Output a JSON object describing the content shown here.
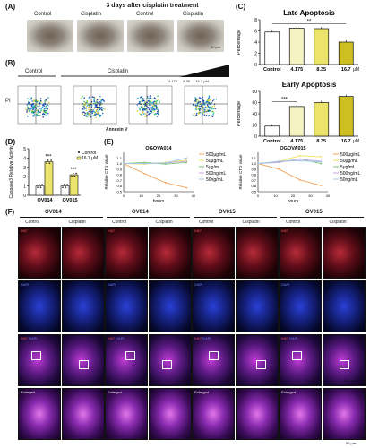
{
  "panel_labels": {
    "a": "(A)",
    "b": "(B)",
    "c": "(C)",
    "d": "(D)",
    "e": "(E)",
    "f": "(F)"
  },
  "panel_a": {
    "header": "3 days after cisplatin treatment",
    "labels": [
      "Control",
      "Cisplatin",
      "Control",
      "Cisplatin"
    ],
    "scale": "50 μm"
  },
  "panel_b": {
    "control": "Control",
    "cisplatin": "Cisplatin",
    "doses": "4.175 → 8.35 → 16.7 μM",
    "ylabel": "PI",
    "xlabel": "Annexin V"
  },
  "chart_data": [
    {
      "type": "bar",
      "title": "Late Apoptosis",
      "categories": [
        "Control",
        "4.175",
        "8.35",
        "16.7"
      ],
      "values": [
        5.8,
        6.5,
        6.4,
        4.0
      ],
      "ylabel": "Percentage",
      "xunit": "μM",
      "ylim": [
        0,
        8
      ],
      "yticks": [
        0,
        2,
        4,
        6,
        8
      ],
      "sig": "**",
      "colors": [
        "#ffffff",
        "#f6f3c2",
        "#ece46a",
        "#cdbf1f"
      ]
    },
    {
      "type": "bar",
      "title": "Early Apoptosis",
      "categories": [
        "Control",
        "4.175",
        "8.35",
        "16.7"
      ],
      "values": [
        18,
        53,
        60,
        71
      ],
      "ylabel": "Percentage",
      "xunit": "μM",
      "ylim": [
        0,
        80
      ],
      "yticks": [
        0,
        20,
        40,
        60,
        80
      ],
      "sig": "***",
      "colors": [
        "#ffffff",
        "#f6f3c2",
        "#ece46a",
        "#cdbf1f"
      ]
    },
    {
      "type": "bar",
      "ylabel": "Caspase3 Relative Activity",
      "categories": [
        "OV014",
        "OV015"
      ],
      "series": [
        {
          "name": "Control",
          "values": [
            1.0,
            1.0
          ]
        },
        {
          "name": "16.7 μM",
          "values": [
            3.6,
            2.2
          ]
        }
      ],
      "ylim": [
        0,
        5
      ],
      "yticks": [
        0,
        1,
        2,
        3,
        4,
        5
      ],
      "sig": [
        "***",
        "***"
      ]
    },
    {
      "type": "line",
      "title": "OGOVA014",
      "ylabel": "Relative CTG value",
      "xlabel": "hours",
      "x": [
        0,
        12,
        24,
        36
      ],
      "ylim": [
        0.5,
        1.2
      ],
      "yticks": [
        0.5,
        0.6,
        0.7,
        0.8,
        0.9,
        1.0,
        1.1
      ],
      "xticks": [
        0,
        10,
        20,
        30,
        40
      ],
      "series": [
        {
          "name": "500μg/mL",
          "color": "#f2a45a",
          "values": [
            1.0,
            0.82,
            0.66,
            0.57
          ]
        },
        {
          "name": "50μg/mL",
          "color": "#f2e05a",
          "values": [
            1.0,
            0.99,
            1.02,
            1.06
          ]
        },
        {
          "name": "5μg/mL",
          "color": "#7cc77a",
          "values": [
            1.0,
            1.02,
            0.99,
            1.02
          ]
        },
        {
          "name": "500ng/mL",
          "color": "#c9a7e6",
          "values": [
            1.0,
            1.0,
            1.01,
            1.04
          ]
        },
        {
          "name": "50ng/mL",
          "color": "#9ec7ea",
          "values": [
            1.0,
            1.0,
            1.01,
            1.1
          ]
        }
      ]
    },
    {
      "type": "line",
      "title": "OGOVA015",
      "ylabel": "Relative CTG value",
      "xlabel": "hours",
      "x": [
        0,
        12,
        24,
        36
      ],
      "ylim": [
        0.5,
        1.2
      ],
      "yticks": [
        0.5,
        0.6,
        0.7,
        0.8,
        0.9,
        1.0,
        1.1
      ],
      "xticks": [
        0,
        10,
        20,
        30,
        40
      ],
      "series": [
        {
          "name": "500μg/mL",
          "color": "#f2a45a",
          "values": [
            1.0,
            0.9,
            0.71,
            0.61
          ]
        },
        {
          "name": "50μg/mL",
          "color": "#f2e05a",
          "values": [
            1.0,
            1.04,
            1.14,
            1.12
          ]
        },
        {
          "name": "5μg/mL",
          "color": "#7cc77a",
          "values": [
            1.0,
            1.03,
            1.08,
            1.0
          ]
        },
        {
          "name": "500ng/mL",
          "color": "#c9a7e6",
          "values": [
            1.0,
            1.02,
            1.08,
            1.04
          ]
        },
        {
          "name": "50ng/mL",
          "color": "#9ec7ea",
          "values": [
            1.0,
            1.04,
            1.05,
            1.03
          ]
        }
      ]
    }
  ],
  "panel_d": {
    "legend_control": "Control",
    "legend_treat": "16.7 μM"
  },
  "panel_e": {
    "legend": [
      "500μg/mL",
      "50μg/mL",
      "5μg/mL",
      "500ng/mL",
      "50ng/mL"
    ]
  },
  "panel_f": {
    "groups": [
      "OV014",
      "OV014",
      "OV015",
      "OV015"
    ],
    "cols": [
      "Control",
      "Cisplatin",
      "Control",
      "Cisplatin",
      "Control",
      "Cisplatin",
      "Control",
      "Cisplatin"
    ],
    "row_labels": [
      "Ki67",
      "FAM83",
      "Ki67",
      "FAM83",
      "Ki67",
      "FAM83",
      "Ki67",
      "FAM83"
    ],
    "dapi": "DAPI",
    "merge_a": "Ki67",
    "merge_b": "DAPI",
    "enlarged": "Enlarged",
    "scale1": "200 μm",
    "scale2": "50 μm"
  }
}
